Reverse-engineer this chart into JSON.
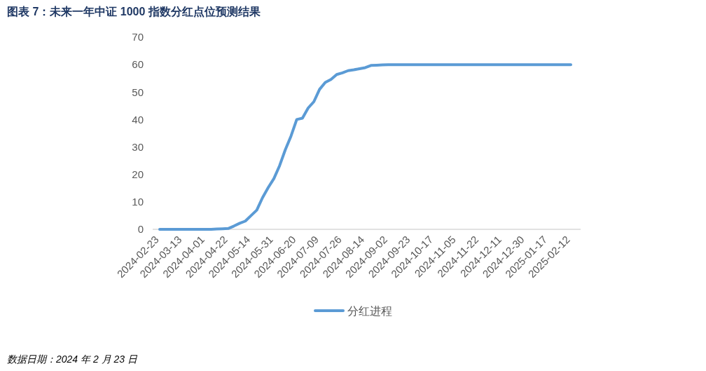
{
  "chart_data": {
    "type": "line",
    "title": "图表 7：未来一年中证 1000 指数分红点位预测结果",
    "categories": [
      "2024-02-23",
      null,
      null,
      null,
      "2024-03-13",
      null,
      null,
      null,
      "2024-04-01",
      null,
      null,
      null,
      "2024-04-22",
      null,
      null,
      null,
      "2024-05-14",
      null,
      null,
      null,
      "2024-05-31",
      null,
      null,
      null,
      "2024-06-20",
      null,
      null,
      null,
      "2024-07-09",
      null,
      null,
      null,
      "2024-07-26",
      null,
      null,
      null,
      "2024-08-14",
      null,
      null,
      null,
      "2024-09-02",
      null,
      null,
      null,
      "2024-09-23",
      null,
      null,
      null,
      "2024-10-17",
      null,
      null,
      null,
      "2024-11-05",
      null,
      null,
      null,
      "2024-11-22",
      null,
      null,
      null,
      "2024-12-11",
      null,
      null,
      null,
      "2024-12-30",
      null,
      null,
      null,
      "2025-01-17",
      null,
      null,
      null,
      "2025-02-12"
    ],
    "series": [
      {
        "name": "分红进程",
        "color": "#5b9bd5",
        "values": [
          0,
          0,
          0,
          0,
          0,
          0,
          0,
          0,
          0,
          0,
          0.1,
          0.2,
          0.3,
          1.2,
          2.2,
          3,
          5,
          7,
          11.5,
          15.2,
          18.5,
          23.2,
          29,
          34,
          40,
          40.5,
          44.2,
          46.5,
          51,
          53.5,
          54.6,
          56.4,
          57,
          57.8,
          58.1,
          58.5,
          58.9,
          59.7,
          59.8,
          59.9,
          60,
          60,
          60,
          60,
          60,
          60,
          60,
          60,
          60,
          60,
          60,
          60,
          60,
          60,
          60,
          60,
          60,
          60,
          60,
          60,
          60,
          60,
          60,
          60,
          60,
          60,
          60,
          60,
          60,
          60,
          60,
          60,
          60
        ]
      }
    ],
    "ylim": [
      0,
      70
    ],
    "yticks": [
      0,
      10,
      20,
      30,
      40,
      50,
      60,
      70
    ],
    "grid": false,
    "legend": "bottom",
    "marker": "none",
    "line_style": "solid",
    "annotations": [
      "数据日期：2024 年 2 月 23 日"
    ]
  }
}
